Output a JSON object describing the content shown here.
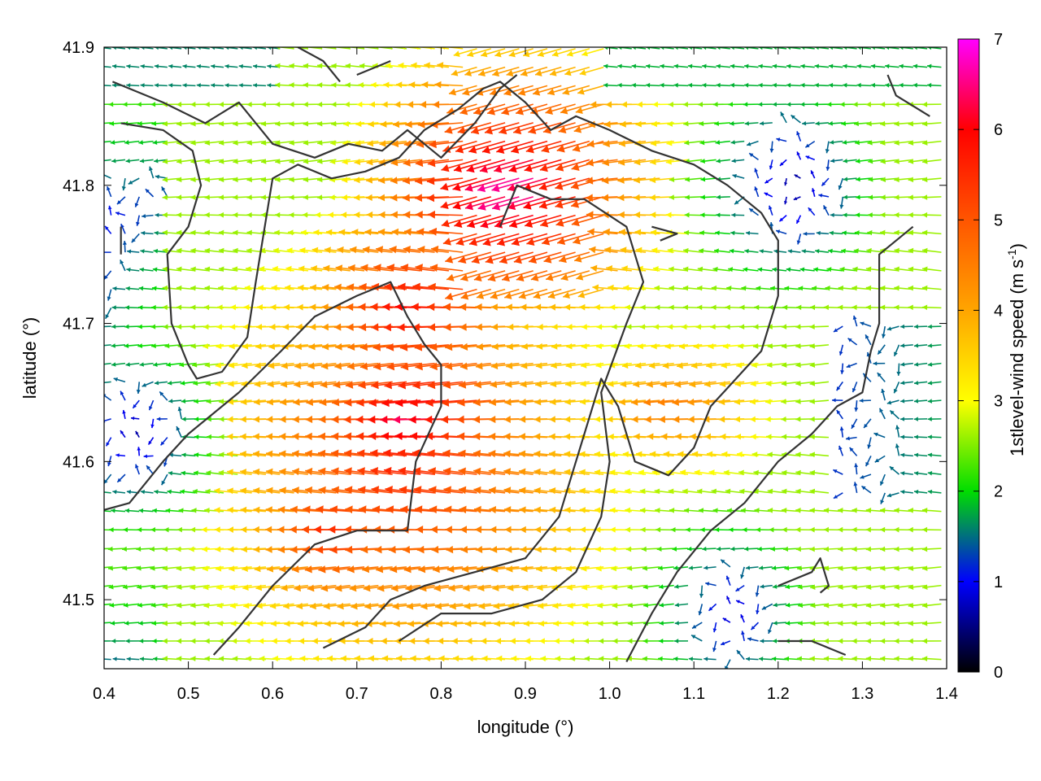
{
  "chart_data": {
    "type": "quiver",
    "xlabel": "longitude (°)",
    "ylabel": "latitude (°)",
    "colorbar_label": "1stlevel-wind speed (m s⁻¹)",
    "colorbar_label_parts": {
      "main": "1stlevel-wind speed (m s",
      "sup": "-1",
      "close": ")"
    },
    "xlim": [
      0.4,
      1.4
    ],
    "ylim": [
      41.45,
      41.9
    ],
    "x_ticks": [
      0.4,
      0.5,
      0.6,
      0.7,
      0.8,
      0.9,
      1.0,
      1.1,
      1.2,
      1.3,
      1.4
    ],
    "x_tick_labels": [
      "0.4",
      "0.5",
      "0.6",
      "0.7",
      "0.8",
      "0.9",
      "1.0",
      "1.1",
      "1.2",
      "1.3",
      "1.4"
    ],
    "y_ticks": [
      41.5,
      41.6,
      41.7,
      41.8,
      41.9
    ],
    "y_tick_labels": [
      "41.5",
      "41.6",
      "41.7",
      "41.8",
      "41.9"
    ],
    "colorbar": {
      "range": [
        0,
        7
      ],
      "ticks": [
        0,
        1,
        2,
        3,
        4,
        5,
        6,
        7
      ],
      "tick_labels": [
        "0",
        "1",
        "2",
        "3",
        "4",
        "5",
        "6",
        "7"
      ],
      "colors": [
        "#000000",
        "#0000ff",
        "#00dd00",
        "#ffff00",
        "#ffa500",
        "#ff5500",
        "#ff0000",
        "#ff00ff"
      ]
    },
    "wind_field": {
      "grid_x": [
        0.4,
        1.4,
        0.0167
      ],
      "grid_y": [
        41.45,
        41.9,
        0.0134
      ],
      "prevailing_direction": "from east (arrows point west)",
      "speed_regions": [
        {
          "name": "magenta core north",
          "center": [
            0.9,
            41.8
          ],
          "speed": 6.8
        },
        {
          "name": "magenta core south",
          "center": [
            0.79,
            41.63
          ],
          "speed": 6.4
        },
        {
          "name": "magenta west lobe",
          "center": [
            0.79,
            41.71
          ],
          "speed": 6.0
        },
        {
          "name": "red band",
          "center": [
            0.7,
            41.55
          ],
          "speed": 5.6
        },
        {
          "name": "orange east band",
          "center": [
            1.08,
            41.64
          ],
          "speed": 4.6
        },
        {
          "name": "calm west coast",
          "center": [
            0.44,
            41.62
          ],
          "speed": 0.6
        },
        {
          "name": "calm southeast",
          "center": [
            1.15,
            41.49
          ],
          "speed": 0.7
        },
        {
          "name": "calm northeast",
          "center": [
            1.22,
            41.8
          ],
          "speed": 0.5
        }
      ]
    },
    "contours": [
      [
        [
          0.41,
          41.875
        ],
        [
          0.47,
          41.86
        ],
        [
          0.52,
          41.845
        ],
        [
          0.56,
          41.86
        ],
        [
          0.6,
          41.83
        ],
        [
          0.65,
          41.82
        ],
        [
          0.69,
          41.83
        ],
        [
          0.73,
          41.825
        ],
        [
          0.76,
          41.84
        ],
        [
          0.8,
          41.82
        ],
        [
          0.84,
          41.845
        ],
        [
          0.87,
          41.87
        ],
        [
          0.89,
          41.88
        ]
      ],
      [
        [
          0.42,
          41.845
        ],
        [
          0.47,
          41.84
        ],
        [
          0.505,
          41.825
        ],
        [
          0.515,
          41.8
        ],
        [
          0.5,
          41.77
        ],
        [
          0.475,
          41.75
        ],
        [
          0.48,
          41.7
        ],
        [
          0.5,
          41.67
        ],
        [
          0.51,
          41.66
        ],
        [
          0.54,
          41.665
        ],
        [
          0.57,
          41.69
        ],
        [
          0.58,
          41.73
        ],
        [
          0.6,
          41.805
        ],
        [
          0.63,
          41.815
        ],
        [
          0.67,
          41.805
        ],
        [
          0.71,
          41.81
        ],
        [
          0.75,
          41.82
        ],
        [
          0.78,
          41.84
        ],
        [
          0.82,
          41.855
        ],
        [
          0.85,
          41.87
        ],
        [
          0.87,
          41.875
        ],
        [
          0.9,
          41.86
        ],
        [
          0.93,
          41.84
        ],
        [
          0.96,
          41.85
        ],
        [
          1.0,
          41.84
        ],
        [
          1.05,
          41.825
        ],
        [
          1.1,
          41.815
        ],
        [
          1.14,
          41.8
        ],
        [
          1.18,
          41.78
        ],
        [
          1.2,
          41.76
        ],
        [
          1.2,
          41.72
        ],
        [
          1.18,
          41.68
        ],
        [
          1.15,
          41.66
        ],
        [
          1.12,
          41.64
        ],
        [
          1.1,
          41.61
        ],
        [
          1.07,
          41.59
        ],
        [
          1.03,
          41.6
        ],
        [
          1.01,
          41.64
        ],
        [
          0.99,
          41.66
        ],
        [
          0.97,
          41.62
        ],
        [
          0.94,
          41.56
        ],
        [
          0.9,
          41.53
        ],
        [
          0.84,
          41.52
        ],
        [
          0.78,
          41.51
        ],
        [
          0.74,
          41.5
        ],
        [
          0.71,
          41.48
        ],
        [
          0.66,
          41.465
        ]
      ],
      [
        [
          0.4,
          41.565
        ],
        [
          0.43,
          41.57
        ],
        [
          0.47,
          41.6
        ],
        [
          0.5,
          41.62
        ],
        [
          0.56,
          41.65
        ],
        [
          0.61,
          41.68
        ],
        [
          0.65,
          41.705
        ],
        [
          0.7,
          41.72
        ],
        [
          0.74,
          41.73
        ],
        [
          0.76,
          41.705
        ],
        [
          0.78,
          41.685
        ],
        [
          0.8,
          41.67
        ],
        [
          0.8,
          41.64
        ],
        [
          0.77,
          41.6
        ],
        [
          0.76,
          41.55
        ],
        [
          0.7,
          41.55
        ],
        [
          0.65,
          41.54
        ],
        [
          0.6,
          41.51
        ],
        [
          0.56,
          41.48
        ],
        [
          0.53,
          41.46
        ]
      ],
      [
        [
          0.75,
          41.47
        ],
        [
          0.8,
          41.49
        ],
        [
          0.86,
          41.49
        ],
        [
          0.92,
          41.5
        ],
        [
          0.96,
          41.52
        ],
        [
          0.99,
          41.56
        ],
        [
          1.0,
          41.6
        ],
        [
          0.99,
          41.65
        ],
        [
          1.02,
          41.7
        ],
        [
          1.04,
          41.73
        ],
        [
          1.02,
          41.77
        ],
        [
          0.97,
          41.79
        ],
        [
          0.93,
          41.79
        ],
        [
          0.89,
          41.8
        ],
        [
          0.87,
          41.77
        ]
      ],
      [
        [
          1.02,
          41.455
        ],
        [
          1.05,
          41.49
        ],
        [
          1.08,
          41.52
        ],
        [
          1.12,
          41.55
        ],
        [
          1.16,
          41.57
        ],
        [
          1.2,
          41.6
        ],
        [
          1.24,
          41.62
        ],
        [
          1.27,
          41.64
        ],
        [
          1.3,
          41.65
        ],
        [
          1.31,
          41.68
        ],
        [
          1.32,
          41.7
        ],
        [
          1.32,
          41.75
        ],
        [
          1.36,
          41.77
        ]
      ],
      [
        [
          1.2,
          41.47
        ],
        [
          1.24,
          41.47
        ],
        [
          1.28,
          41.46
        ]
      ],
      [
        [
          0.63,
          41.9
        ],
        [
          0.66,
          41.89
        ],
        [
          0.68,
          41.875
        ]
      ],
      [
        [
          0.7,
          41.88
        ],
        [
          0.74,
          41.89
        ]
      ],
      [
        [
          0.42,
          41.77
        ],
        [
          0.42,
          41.75
        ]
      ],
      [
        [
          1.33,
          41.88
        ],
        [
          1.34,
          41.865
        ],
        [
          1.38,
          41.85
        ]
      ],
      [
        [
          1.2,
          41.51
        ],
        [
          1.24,
          41.52
        ],
        [
          1.25,
          41.53
        ],
        [
          1.26,
          41.51
        ],
        [
          1.25,
          41.505
        ]
      ],
      [
        [
          1.05,
          41.77
        ],
        [
          1.08,
          41.765
        ],
        [
          1.06,
          41.76
        ]
      ]
    ]
  }
}
